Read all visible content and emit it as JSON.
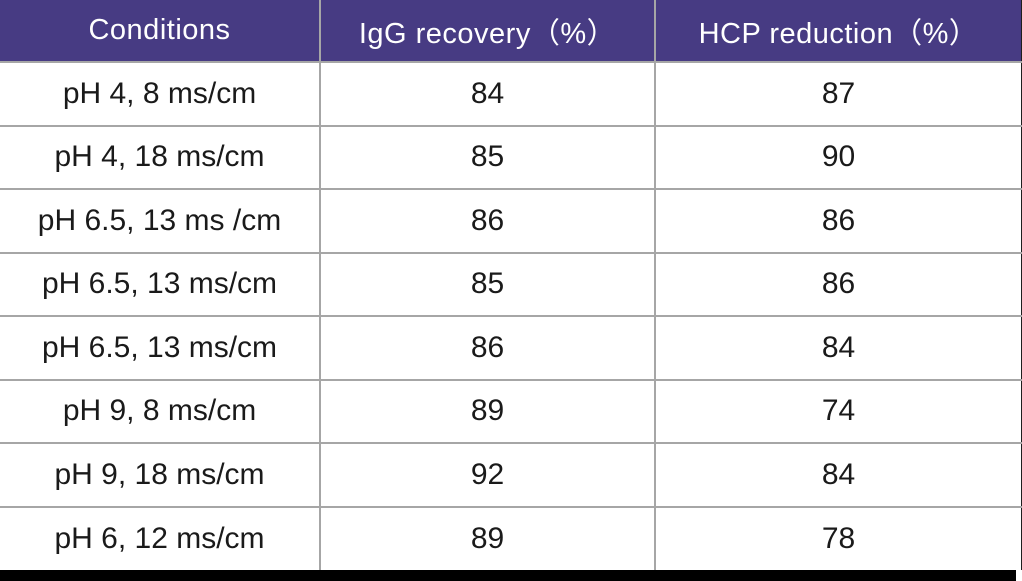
{
  "table": {
    "columns": [
      {
        "label": "Conditions"
      },
      {
        "label": "IgG recovery（%）"
      },
      {
        "label": "HCP reduction（%）"
      }
    ],
    "rows": [
      {
        "condition": "pH 4, 8 ms/cm",
        "igg_recovery": "84",
        "hcp_reduction": "87"
      },
      {
        "condition": "pH 4, 18 ms/cm",
        "igg_recovery": "85",
        "hcp_reduction": "90"
      },
      {
        "condition": "pH 6.5, 13 ms /cm",
        "igg_recovery": "86",
        "hcp_reduction": "86"
      },
      {
        "condition": "pH 6.5, 13 ms/cm",
        "igg_recovery": "85",
        "hcp_reduction": "86"
      },
      {
        "condition": "pH 6.5, 13 ms/cm",
        "igg_recovery": "86",
        "hcp_reduction": "84"
      },
      {
        "condition": "pH 9, 8 ms/cm",
        "igg_recovery": "89",
        "hcp_reduction": "74"
      },
      {
        "condition": "pH 9, 18 ms/cm",
        "igg_recovery": "92",
        "hcp_reduction": "84"
      },
      {
        "condition": "pH 6, 12 ms/cm",
        "igg_recovery": "89",
        "hcp_reduction": "78"
      }
    ]
  },
  "colors": {
    "header_bg": "#473B83",
    "header_text": "#FFFFFF",
    "row_bg": "#FFFFFF",
    "cell_text": "#1A1A1A",
    "grid_border": "#A6A6A6",
    "outer_dark": "#1F1F1F"
  }
}
